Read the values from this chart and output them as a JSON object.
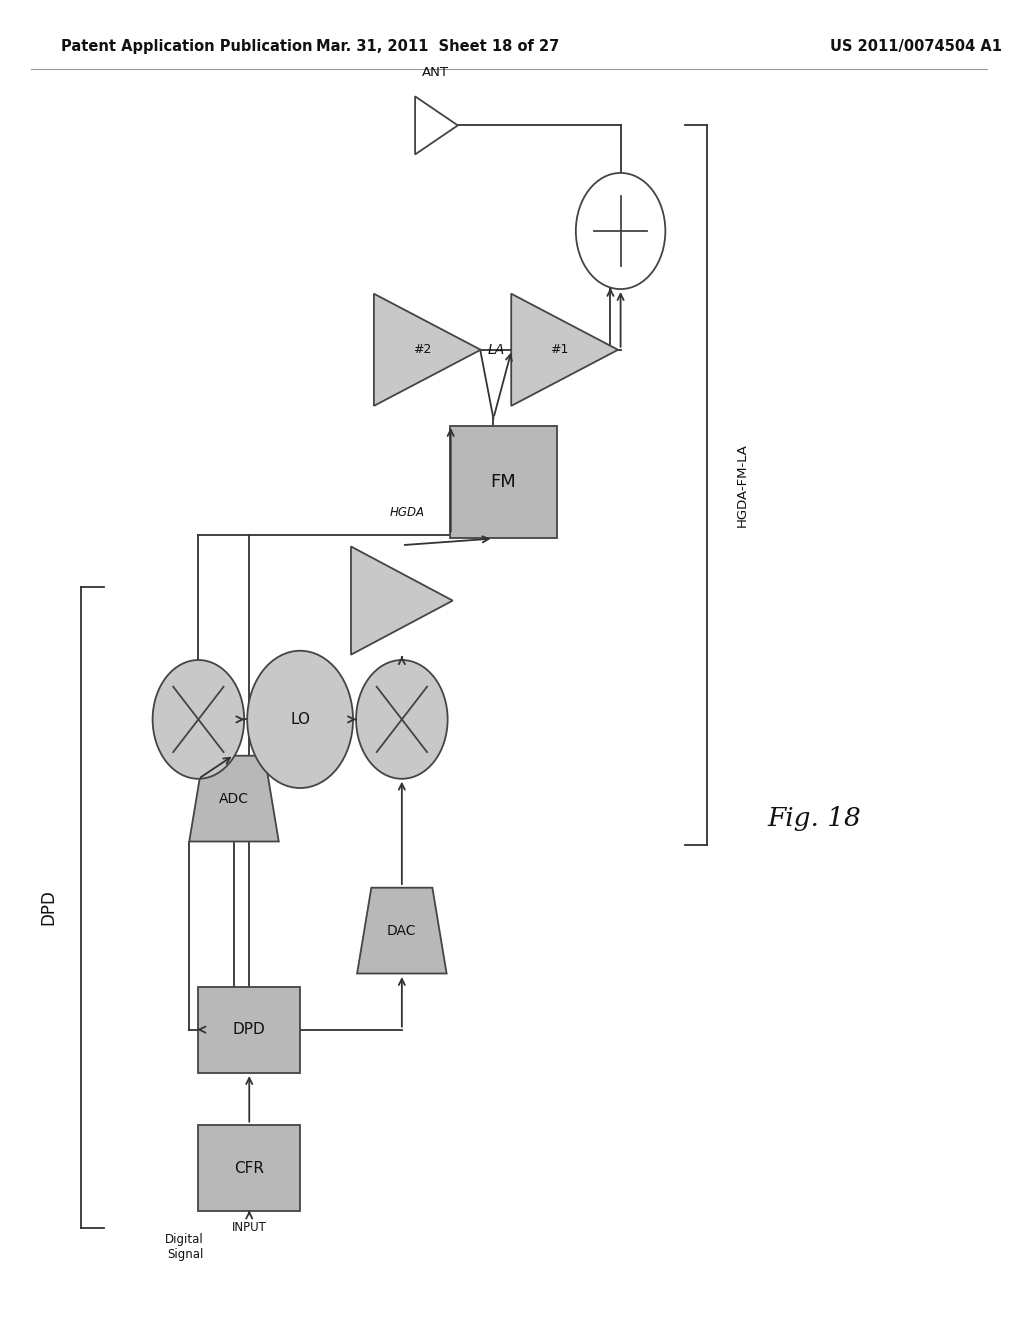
{
  "background_color": "#ffffff",
  "box_fill": "#b8b8b8",
  "box_edge": "#444444",
  "circle_fill": "#c8c8c8",
  "circle_edge": "#444444",
  "line_color": "#333333",
  "text_color": "#111111",
  "header_left": "Patent Application Publication",
  "header_mid": "Mar. 31, 2011  Sheet 18 of 27",
  "header_right": "US 2011/0074504 A1",
  "fig_caption": "Fig. 18",
  "dpd_brace_label": "DPD",
  "hgda_fm_la_label": "HGDA-FM-LA",
  "ant_label": "ANT",
  "hgda_label": "HGDA",
  "la_label": "LA",
  "input_label": "INPUT",
  "digital_signal_label": "Digital\nSignal"
}
